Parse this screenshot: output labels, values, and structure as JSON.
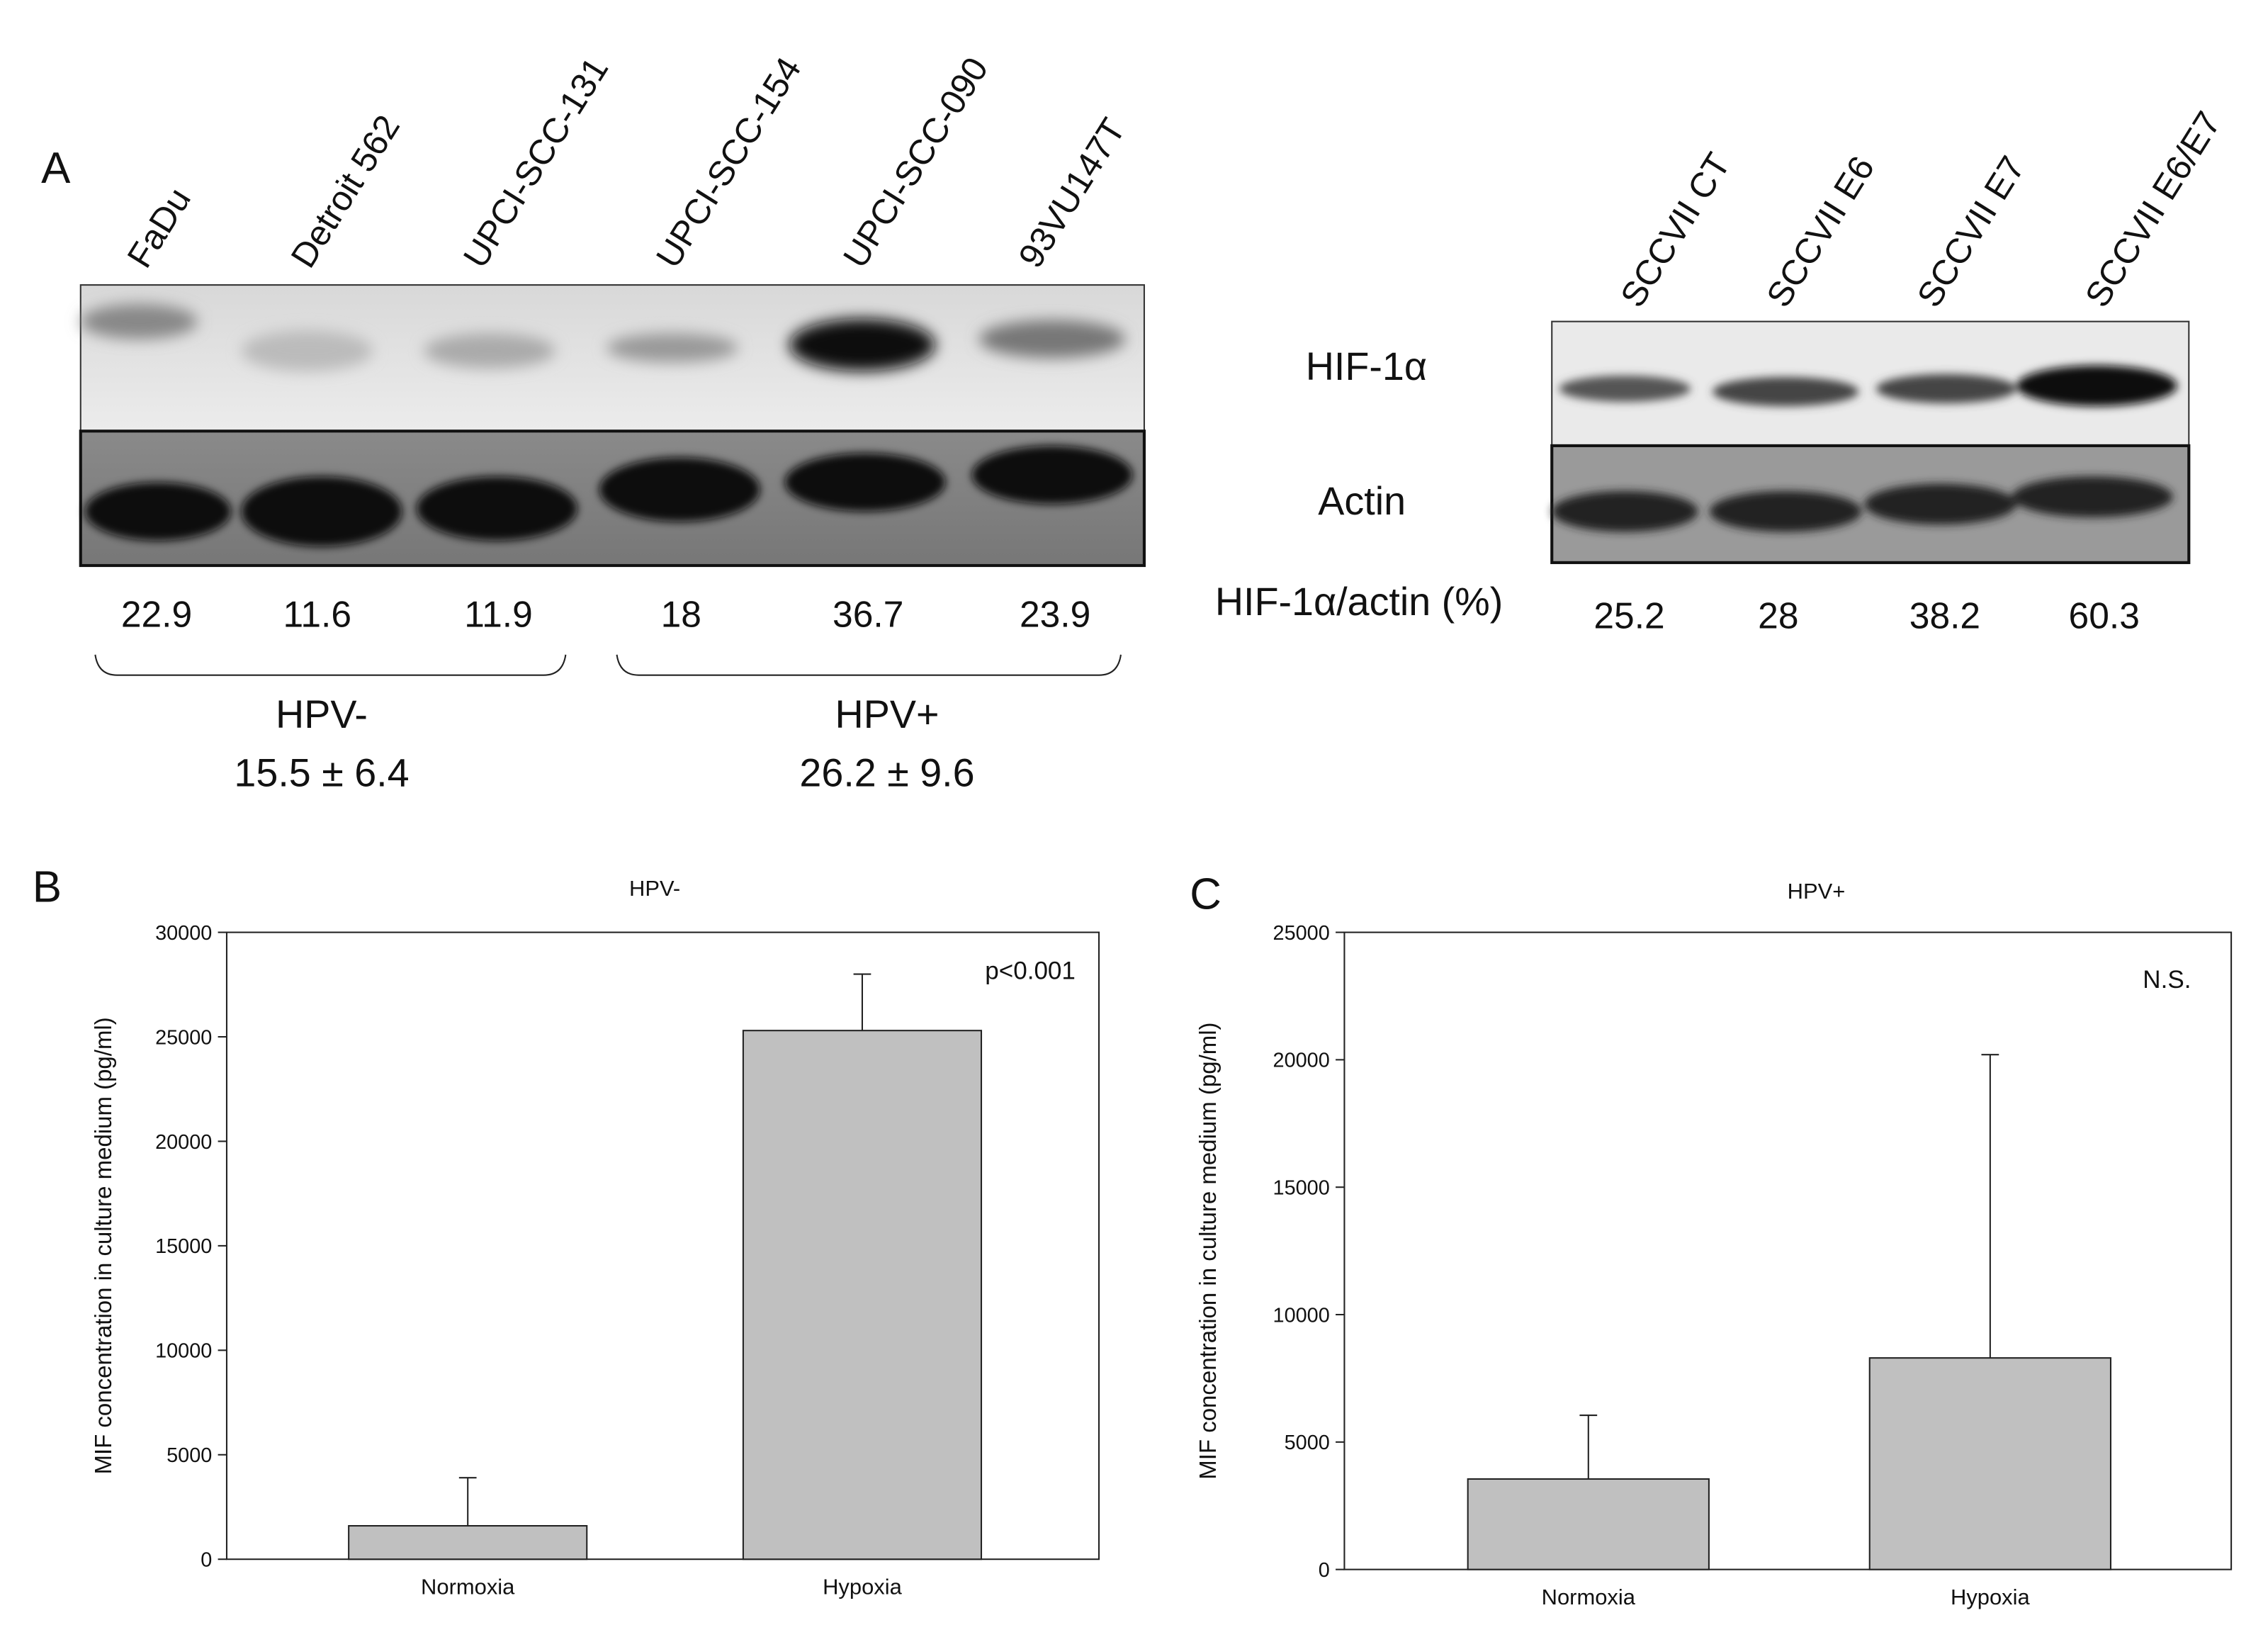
{
  "panel_labels": [
    "A",
    "B",
    "C"
  ],
  "western_blot_hpv": {
    "lanes": [
      "FaDu",
      "Detroit 562",
      "UPCI-SCC-131",
      "UPCI-SCC-154",
      "UPCI-SCC-090",
      "93VU147T"
    ],
    "ratios": [
      22.9,
      11.6,
      11.9,
      18,
      36.7,
      23.9
    ],
    "groups": [
      {
        "label": "HPV-",
        "summary": "15.5 ± 6.4"
      },
      {
        "label": "HPV+",
        "summary": "26.2 ± 9.6"
      }
    ]
  },
  "western_blot_sccvii": {
    "lanes": [
      "SCCVII CT",
      "SCCVII E6",
      "SCCVII E7",
      "SCCVII E6/E7"
    ],
    "row_labels": [
      "HIF-1α",
      "Actin"
    ],
    "ratio_label": "HIF-1α/actin (%)",
    "ratios": [
      25.2,
      28,
      38.2,
      60.3
    ]
  },
  "chart_data": [
    {
      "type": "bar",
      "title": "HPV-",
      "y_label": "MIF concentration in culture medium (pg/ml)",
      "categories": [
        "Normoxia",
        "Hypoxia"
      ],
      "values": [
        1600,
        25300
      ],
      "errors": [
        2300,
        2700
      ],
      "color": "#c0c0c0",
      "ylim": [
        0,
        30000
      ],
      "yticks": [
        0,
        5000,
        10000,
        15000,
        20000,
        25000,
        30000
      ],
      "annotation": "p<0.001"
    },
    {
      "type": "bar",
      "title": "HPV+",
      "y_label": "MIF concentration in culture medium (pg/ml)",
      "categories": [
        "Normoxia",
        "Hypoxia"
      ],
      "values": [
        3550,
        8300
      ],
      "errors": [
        2500,
        11900
      ],
      "color": "#c0c0c0",
      "ylim": [
        0,
        25000
      ],
      "yticks": [
        0,
        5000,
        10000,
        15000,
        20000,
        25000
      ],
      "annotation": "N.S."
    }
  ]
}
